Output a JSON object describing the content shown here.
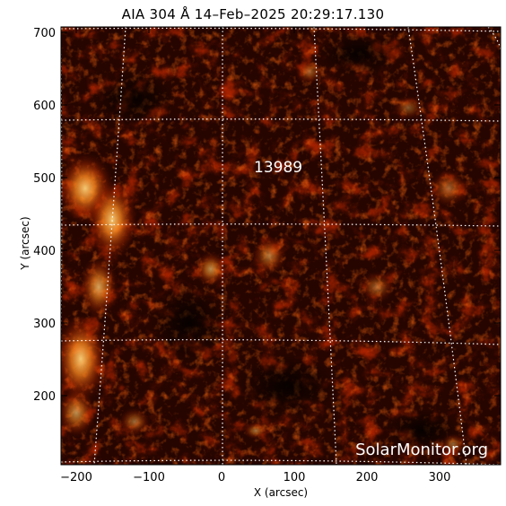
{
  "title": "AIA 304 Å 14–Feb–2025 20:29:17.130",
  "x_axis": {
    "label": "X (arcsec)",
    "range": [
      -225,
      385
    ],
    "ticks": [
      "−200",
      "−100",
      "0",
      "100",
      "200",
      "300"
    ],
    "tick_values": [
      -200,
      -100,
      0,
      100,
      200,
      300
    ]
  },
  "y_axis": {
    "label": "Y (arcsec)",
    "range": [
      107,
      706
    ],
    "ticks": [
      "200",
      "300",
      "400",
      "500",
      "600",
      "700"
    ],
    "tick_values": [
      200,
      300,
      400,
      500,
      600,
      700
    ]
  },
  "active_region": "13989",
  "watermark": "SolarMonitor.org",
  "colors": {
    "background": "#000000",
    "chromosphere_dark": "#3a0800",
    "chromosphere_mid": "#8a1a00",
    "chromosphere_bright": "#e85a00",
    "chromosphere_peak": "#ffd27a",
    "grid": "#ffffff",
    "label_text": "#ffffff"
  }
}
